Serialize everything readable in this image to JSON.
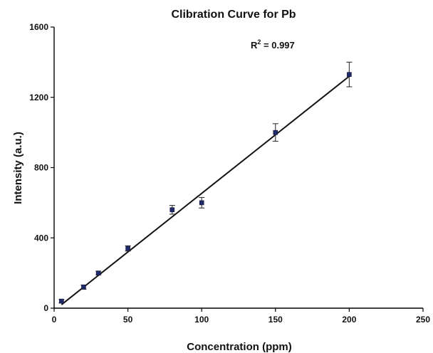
{
  "chart_data": {
    "type": "scatter",
    "title": "Clibration Curve for Pb",
    "xlabel": "Concentration (ppm)",
    "ylabel": "Intensity (a.u.)",
    "xlim": [
      0,
      250
    ],
    "ylim": [
      0,
      1600
    ],
    "xticks": [
      "0",
      "50",
      "100",
      "150",
      "200",
      "250"
    ],
    "yticks": [
      "0",
      "400",
      "800",
      "1200",
      "1600"
    ],
    "grid": false,
    "legend": "none",
    "annotation": {
      "r2_prefix": "R",
      "r2_sup": "2",
      "r2_suffix": " = 0.997"
    },
    "series": [
      {
        "x": [
          5,
          20,
          30,
          50,
          80,
          100,
          150,
          200
        ],
        "y": [
          40,
          120,
          200,
          340,
          560,
          600,
          1000,
          1330
        ],
        "yerr": [
          10,
          12,
          10,
          15,
          25,
          30,
          50,
          70
        ],
        "marker_color": "#1f2a6b"
      }
    ],
    "fit_line": {
      "x": [
        5,
        200
      ],
      "y": [
        20,
        1320
      ]
    }
  }
}
